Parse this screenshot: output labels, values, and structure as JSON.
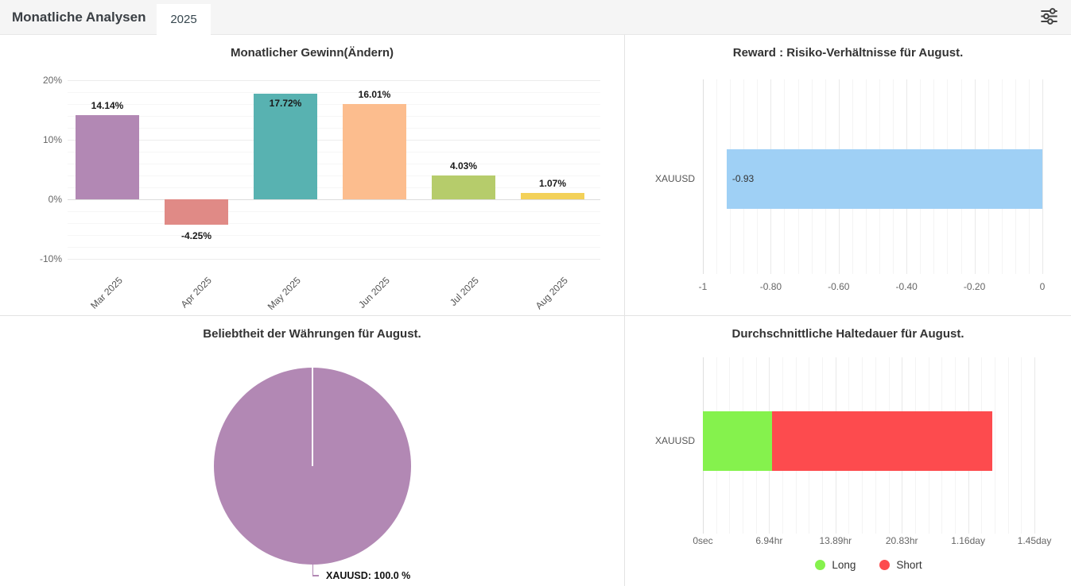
{
  "header": {
    "title": "Monatliche Analysen",
    "tab": "2025",
    "filter_icon": "sliders-icon"
  },
  "colors": {
    "header_bg": "#f5f5f5",
    "panel_border": "#e3e3e3",
    "purple": "#b288b4",
    "salmon": "#e08a86",
    "teal": "#58b2b1",
    "peach": "#fcbd8e",
    "yellow_green": "#b6cc6b",
    "yellow": "#f3d159",
    "light_blue": "#9fd0f5",
    "long_green": "#85f24d",
    "short_red": "#fd4b4e"
  },
  "chart_data": [
    {
      "id": "monthly_profit",
      "type": "bar",
      "title": "Monatlicher Gewinn(Ändern)",
      "categories": [
        "Mar 2025",
        "Apr 2025",
        "May 2025",
        "Jun 2025",
        "Jul 2025",
        "Aug 2025"
      ],
      "values": [
        14.14,
        -4.25,
        17.72,
        16.01,
        4.03,
        1.07
      ],
      "value_labels": [
        "14.14%",
        "-4.25%",
        "17.72%",
        "16.01%",
        "4.03%",
        "1.07%"
      ],
      "label_positions": [
        "above",
        "below",
        "inside",
        "above",
        "above",
        "above"
      ],
      "bar_colors": [
        "#b288b4",
        "#e08a86",
        "#58b2b1",
        "#fcbd8e",
        "#b6cc6b",
        "#f3d159"
      ],
      "yticks": [
        20,
        10,
        0,
        -10
      ],
      "ytick_labels": [
        "20%",
        "10%",
        "0%",
        "-10%"
      ],
      "ylim": [
        -10,
        20
      ],
      "grid": "horizontal, minor every 2%"
    },
    {
      "id": "reward_risk",
      "type": "bar-horizontal",
      "title": "Reward : Risiko-Verhältnisse für August.",
      "categories": [
        "XAUUSD"
      ],
      "values": [
        -0.93
      ],
      "value_labels": [
        "-0.93"
      ],
      "bar_color": "#9fd0f5",
      "xlim": [
        -1,
        0
      ],
      "xticks": [
        -1,
        -0.8,
        -0.6,
        -0.4,
        -0.2,
        0
      ],
      "xtick_labels": [
        "-1",
        "-0.80",
        "-0.60",
        "-0.40",
        "-0.20",
        "0"
      ],
      "grid": "vertical, minor every 0.04"
    },
    {
      "id": "currency_popularity",
      "type": "pie",
      "title": "Beliebtheit der Währungen für August.",
      "slices": [
        {
          "label": "XAUUSD",
          "value": 100.0,
          "color": "#b288b4",
          "callout": "XAUUSD: 100.0 %"
        }
      ]
    },
    {
      "id": "avg_holding_duration",
      "type": "stacked-bar-horizontal",
      "title": "Durchschnittliche Haltedauer für August.",
      "categories": [
        "XAUUSD"
      ],
      "series": [
        {
          "name": "Long",
          "hours": 7.26,
          "color": "#85f24d"
        },
        {
          "name": "Short",
          "hours": 23.1,
          "color": "#fd4b4e"
        }
      ],
      "xlim_hours": [
        0,
        34.8
      ],
      "xtick_hours": [
        0,
        6.94,
        13.89,
        20.83,
        27.84,
        34.8
      ],
      "xtick_labels": [
        "0sec",
        "6.94hr",
        "13.89hr",
        "20.83hr",
        "1.16day",
        "1.45day"
      ],
      "legend": [
        "Long",
        "Short"
      ],
      "legend_colors": [
        "#85f24d",
        "#fd4b4e"
      ],
      "grid": "vertical, 5 minors per major"
    }
  ]
}
